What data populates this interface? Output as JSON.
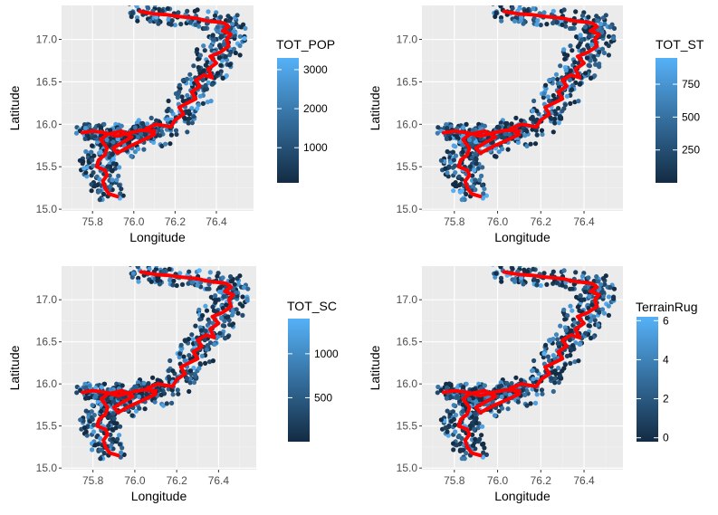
{
  "figure": {
    "palette": {
      "panel_bg": "#EBEBEB",
      "grid_major": "#FFFFFF",
      "grid_minor": "#F3F3F3",
      "river_line": "#FF0000",
      "gradient_low": "#132B43",
      "gradient_high": "#56B1F7"
    }
  },
  "chart_data": [
    {
      "type": "scatter",
      "title": "",
      "xlabel": "Longitude",
      "ylabel": "Latitude",
      "xlim": [
        75.65,
        76.58
      ],
      "ylim": [
        14.98,
        17.4
      ],
      "x_ticks": [
        "75.8",
        "76.0",
        "76.2",
        "76.4"
      ],
      "y_ticks": [
        "15.0",
        "15.5",
        "16.0",
        "16.5",
        "17.0"
      ],
      "grid": true,
      "legend": {
        "title": "TOT_POP",
        "placement": "right",
        "min": 100,
        "max": 3300,
        "ticks": [
          "1000",
          "2000",
          "3000"
        ]
      },
      "color_seed": 11
    },
    {
      "type": "scatter",
      "title": "",
      "xlabel": "Longitude",
      "ylabel": "Latitude",
      "xlim": [
        75.65,
        76.58
      ],
      "ylim": [
        14.98,
        17.4
      ],
      "x_ticks": [
        "75.8",
        "76.0",
        "76.2",
        "76.4"
      ],
      "y_ticks": [
        "15.0",
        "15.5",
        "16.0",
        "16.5",
        "17.0"
      ],
      "grid": true,
      "legend": {
        "title": "TOT_ST",
        "placement": "right",
        "min": 0,
        "max": 950,
        "ticks": [
          "250",
          "500",
          "750"
        ]
      },
      "color_seed": 23
    },
    {
      "type": "scatter",
      "title": "",
      "xlabel": "Longitude",
      "ylabel": "Latitude",
      "xlim": [
        75.65,
        76.58
      ],
      "ylim": [
        14.98,
        17.4
      ],
      "x_ticks": [
        "75.8",
        "76.0",
        "76.2",
        "76.4"
      ],
      "y_ticks": [
        "15.0",
        "15.5",
        "16.0",
        "16.5",
        "17.0"
      ],
      "grid": true,
      "legend": {
        "title": "TOT_SC",
        "placement": "right",
        "min": 0,
        "max": 1400,
        "ticks": [
          "500",
          "1000"
        ]
      },
      "color_seed": 37
    },
    {
      "type": "scatter",
      "title": "",
      "xlabel": "Longitude",
      "ylabel": "Latitude",
      "xlim": [
        75.65,
        76.58
      ],
      "ylim": [
        14.98,
        17.4
      ],
      "x_ticks": [
        "75.8",
        "76.0",
        "76.2",
        "76.4"
      ],
      "y_ticks": [
        "15.0",
        "15.5",
        "16.0",
        "16.5",
        "17.0"
      ],
      "grid": true,
      "legend": {
        "title": "TerrainRug",
        "placement": "right",
        "min": -0.2,
        "max": 6.2,
        "ticks": [
          "0",
          "2",
          "4",
          "6"
        ]
      },
      "color_seed": 53
    }
  ],
  "river_path": {
    "lon": [
      75.92,
      75.88,
      75.86,
      75.85,
      75.87,
      75.86,
      75.82,
      75.83,
      75.86,
      75.87,
      75.84,
      75.87,
      75.94,
      75.99,
      75.94,
      75.9,
      75.92,
      75.98,
      76.05,
      76.1,
      76.06,
      76.11,
      76.18,
      76.2,
      76.24,
      76.22,
      76.26,
      76.3,
      76.28,
      76.32,
      76.3,
      76.34,
      76.38,
      76.36,
      76.4,
      76.37,
      76.42,
      76.46,
      76.45,
      76.47,
      76.43,
      76.46,
      76.44,
      76.42,
      76.35,
      76.3,
      76.22,
      76.16,
      76.1,
      76.05,
      76.03
    ],
    "lat": [
      15.15,
      15.18,
      15.25,
      15.33,
      15.4,
      15.46,
      15.5,
      15.58,
      15.64,
      15.72,
      15.82,
      15.88,
      15.92,
      15.85,
      15.78,
      15.72,
      15.66,
      15.74,
      15.82,
      15.88,
      15.95,
      16.0,
      15.97,
      16.05,
      16.12,
      16.2,
      16.25,
      16.3,
      16.38,
      16.45,
      16.52,
      16.58,
      16.55,
      16.65,
      16.72,
      16.8,
      16.85,
      16.92,
      17.0,
      17.06,
      17.1,
      17.15,
      17.19,
      17.2,
      17.22,
      17.25,
      17.27,
      17.29,
      17.3,
      17.32,
      17.33
    ]
  },
  "west_arm": {
    "lon": [
      75.75,
      75.8,
      75.86,
      75.92,
      75.98,
      76.04,
      76.1
    ],
    "lat": [
      15.9,
      15.92,
      15.9,
      15.86,
      15.9,
      15.93,
      15.92
    ]
  }
}
